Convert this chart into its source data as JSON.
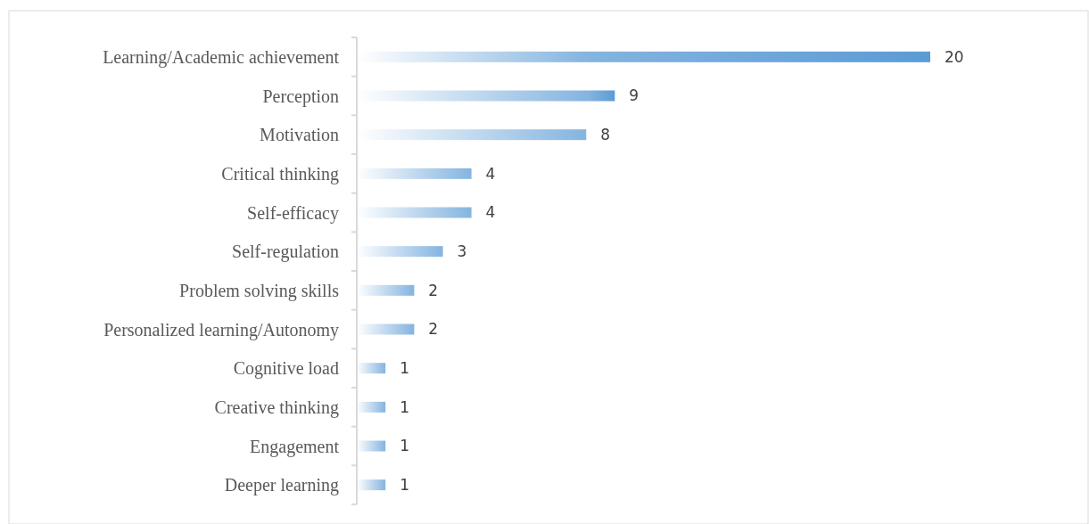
{
  "chart_data": {
    "type": "bar",
    "orientation": "horizontal",
    "data_labels": true,
    "color": "#5b9bd5",
    "categories": [
      "Learning/Academic achievement",
      "Perception",
      "Motivation",
      "Critical thinking",
      "Self-efficacy",
      "Self-regulation",
      "Problem solving skills",
      "Personalized learning/Autonomy",
      "Cognitive load",
      "Creative thinking",
      "Engagement",
      "Deeper learning"
    ],
    "values": [
      20,
      9,
      8,
      4,
      4,
      3,
      2,
      2,
      1,
      1,
      1,
      1
    ]
  }
}
